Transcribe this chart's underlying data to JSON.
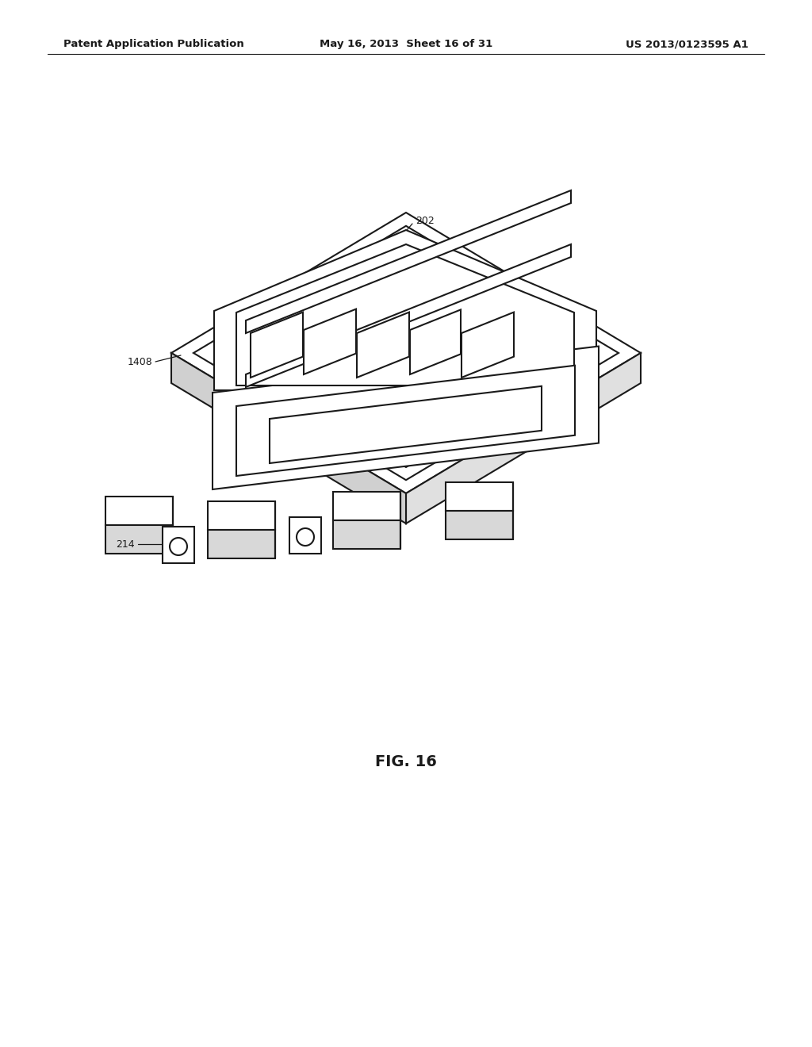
{
  "background_color": "#ffffff",
  "line_color": "#1a1a1a",
  "lw": 1.5,
  "header_left": "Patent Application Publication",
  "header_center": "May 16, 2013  Sheet 16 of 31",
  "header_right": "US 2013/0123595 A1",
  "figure_label": "FIG. 16"
}
